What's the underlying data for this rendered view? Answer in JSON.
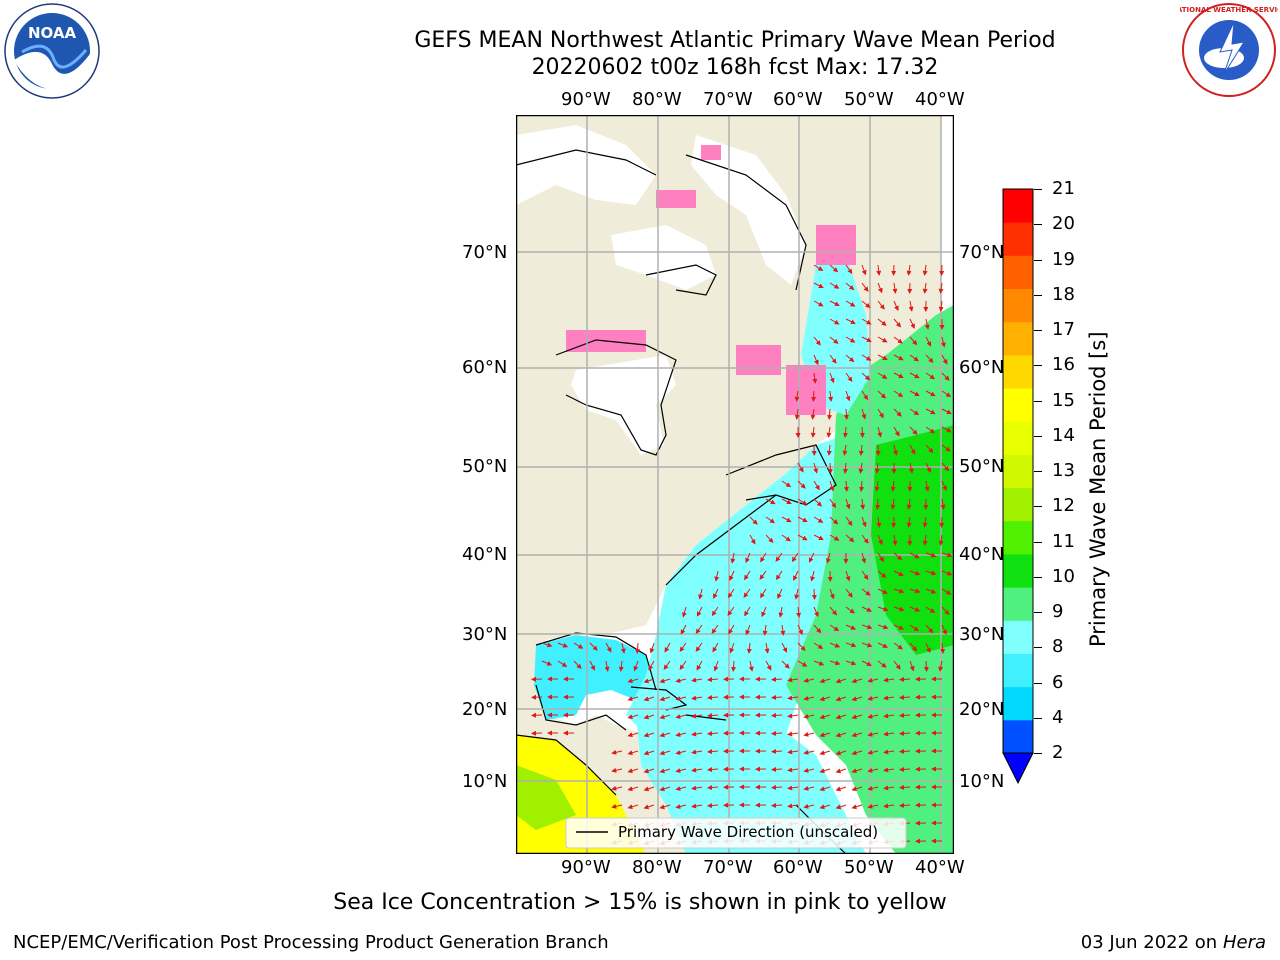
{
  "title": {
    "line1": "GEFS MEAN Northwest Atlantic Primary Wave Mean Period",
    "line2": "20220602 t00z 168h fcst   Max: 17.32"
  },
  "map": {
    "lon_labels": [
      "90°W",
      "80°W",
      "70°W",
      "60°W",
      "50°W",
      "40°W"
    ],
    "lat_labels": [
      "70°N",
      "60°N",
      "50°N",
      "40°N",
      "30°N",
      "20°N",
      "10°N"
    ],
    "legend_label": "Primary Wave Direction (unscaled)",
    "land_color": "#efedd9",
    "arrow_color": "#e01818"
  },
  "colorbar": {
    "title": "Primary Wave Mean Period [s]",
    "ticks": [
      "2",
      "4",
      "6",
      "8",
      "9",
      "10",
      "11",
      "12",
      "13",
      "14",
      "15",
      "16",
      "17",
      "18",
      "19",
      "20",
      "21"
    ],
    "colors": [
      "#0050ff",
      "#00d8ff",
      "#40f0ff",
      "#80ffff",
      "#50f080",
      "#10e010",
      "#50f000",
      "#a0f000",
      "#d0f800",
      "#e8ff00",
      "#ffff00",
      "#ffd800",
      "#ffb000",
      "#ff8800",
      "#ff6000",
      "#ff3000",
      "#ff0000"
    ],
    "under_color": "#0000ff"
  },
  "note": "Sea Ice Concentration > 15% is shown in pink to yellow",
  "footer": {
    "left": "NCEP/EMC/Verification Post Processing Product Generation Branch",
    "date": "03 Jun 2022 on",
    "machine": "Hera"
  },
  "logos": {
    "noaa_text": "NOAA",
    "nws_text": "NATIONAL WEATHER SERVICE"
  }
}
